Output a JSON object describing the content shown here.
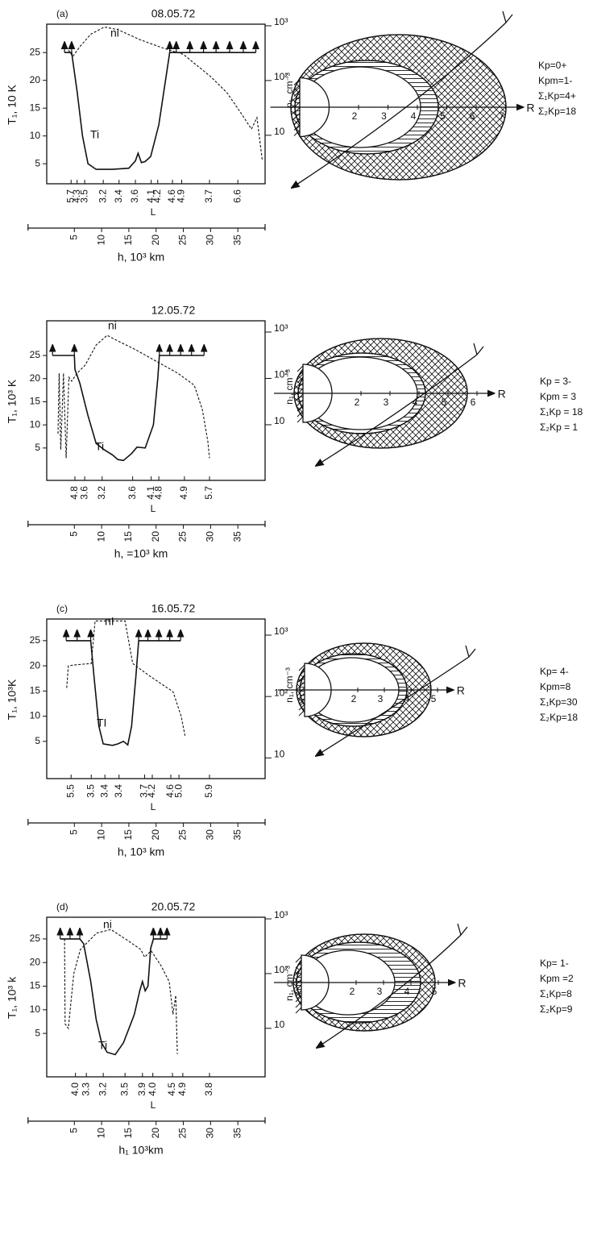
{
  "chart_data": [
    {
      "type": "line",
      "panel_label": "(a)",
      "title": "08.05.72",
      "ylabel": "T₁, 10 K",
      "y2label": "n₁, cm⁻³",
      "xlabel": "h, 10³ km",
      "x2label": "L",
      "xlim": [
        -3.5,
        40
      ],
      "xticks": [
        5,
        10,
        15,
        20,
        25,
        30,
        35
      ],
      "ylim": [
        1.4,
        30.1
      ],
      "yticks": [
        5,
        10,
        15,
        20,
        25
      ],
      "y2lim": [
        1.3,
        1070
      ],
      "y2ticks": [
        10,
        {
          "value": 100,
          "label": "10²"
        },
        {
          "value": 1000,
          "label": "10³"
        }
      ],
      "y2log": true,
      "x2ticks": [
        {
          "value": 4.4,
          "label": "5.7"
        },
        {
          "value": 5.5,
          "label": "4.3"
        },
        {
          "value": 6.9,
          "label": "3.5"
        },
        {
          "value": 10.3,
          "label": "3.2"
        },
        {
          "value": 13.2,
          "label": "3.4"
        },
        {
          "value": 16.2,
          "label": "3.6"
        },
        {
          "value": 19.1,
          "label": "4.1"
        },
        {
          "value": 20.3,
          "label": "4.2"
        },
        {
          "value": 23.0,
          "label": "4.6"
        },
        {
          "value": 24.7,
          "label": "4.9"
        },
        {
          "value": 29.8,
          "label": "3.7"
        },
        {
          "value": 35.0,
          "label": "6.6"
        }
      ],
      "series": [
        {
          "name": "Ti",
          "color": "#111111",
          "line_style": "solid",
          "x": [
            3.2,
            4.5,
            5.5,
            6.5,
            7.5,
            9,
            12,
            15,
            16.2,
            16.7,
            17.3,
            18,
            19,
            20.5,
            22.5,
            23.7,
            26.2,
            28.7,
            31,
            33.5,
            36,
            38.3
          ],
          "values": [
            25,
            25,
            18,
            10,
            5,
            4,
            4,
            4.2,
            5.5,
            6.9,
            5.2,
            5.4,
            6.3,
            12,
            25,
            25,
            25,
            25,
            25,
            25,
            25,
            25
          ]
        },
        {
          "name": "ni",
          "color": "#111111",
          "line_style": "dashed",
          "axis": "y2",
          "x": [
            3.5,
            4.7,
            6,
            8,
            10.5,
            13,
            17,
            21,
            25,
            30,
            33,
            35.5,
            37.5,
            38.5,
            39.5
          ],
          "values": [
            415,
            275,
            415,
            700,
            950,
            850,
            560,
            400,
            300,
            118,
            60,
            26,
            13,
            21,
            3.4
          ]
        }
      ],
      "diagram": {
        "r_ticks": [
          2,
          3,
          4,
          5,
          6,
          7
        ],
        "r_label": "R"
      },
      "kp_indices": [
        "Kp=0+",
        "Kpm=1-",
        "Σ₁Kp=4+",
        "Σ₂Kp=18"
      ]
    },
    {
      "type": "line",
      "title": "12.05.72",
      "ylabel": "T₁, 10³ K",
      "y2label": "n₁, cm⁻³",
      "xlabel": "h, =10³ km",
      "x2label": "L",
      "xlim": [
        -3.5,
        40
      ],
      "xticks": [
        5,
        10,
        15,
        20,
        25,
        30,
        35
      ],
      "ylim": [
        -2,
        32.5
      ],
      "yticks": [
        5,
        10,
        15,
        20,
        25
      ],
      "y2lim": [
        0.63,
        1750
      ],
      "y2ticks": [
        10,
        {
          "value": 100,
          "label": "10²"
        },
        {
          "value": 1000,
          "label": "10³"
        }
      ],
      "y2log": true,
      "x2ticks": [
        {
          "value": 5.1,
          "label": "4.8"
        },
        {
          "value": 6.9,
          "label": "3.6"
        },
        {
          "value": 10.1,
          "label": "3.2"
        },
        {
          "value": 15.7,
          "label": "3.6"
        },
        {
          "value": 19.1,
          "label": "4.1"
        },
        {
          "value": 20.5,
          "label": "4.8"
        },
        {
          "value": 25.2,
          "label": "4.9"
        },
        {
          "value": 29.8,
          "label": "5.7"
        }
      ],
      "series": [
        {
          "name": "Ti",
          "color": "#111111",
          "line_style": "solid",
          "x": [
            1,
            5,
            5.1,
            6,
            7.5,
            9,
            10.5,
            12,
            13,
            14,
            15.5,
            16.5,
            18,
            19.5,
            20.3,
            20.6,
            22.5,
            24.5,
            26.5,
            28.8
          ],
          "values": [
            25,
            25,
            22,
            19,
            12,
            6,
            4.6,
            3.5,
            2.5,
            2.3,
            3.8,
            5.2,
            5,
            10,
            20,
            25,
            25,
            25,
            25,
            25
          ]
        },
        {
          "name": "ni",
          "color": "#111111",
          "line_style": "dashed",
          "axis": "y2",
          "x": [
            2,
            2.2,
            2.5,
            3,
            3.5,
            4,
            4.5,
            5.5,
            7,
            9,
            11,
            13,
            16,
            20,
            24,
            27,
            28.5,
            29.5,
            29.8
          ],
          "values": [
            6.4,
            129,
            2.9,
            129,
            1.9,
            106,
            87,
            129,
            194,
            525,
            850,
            640,
            430,
            235,
            129,
            71,
            21,
            4.3,
            1.9
          ]
        }
      ],
      "diagram": {
        "r_ticks": [
          2,
          3,
          4,
          5,
          6
        ],
        "r_label": "R"
      },
      "kp_indices": [
        "Kp = 3-",
        "Kpm = 3",
        "Σ₁Kp = 18",
        "Σ₂Kp = 1"
      ]
    },
    {
      "type": "line",
      "panel_label": "(c)",
      "title": "16.05.72",
      "ylabel": "T₁,  10³K",
      "y2label": "n₁,  cm⁻³",
      "xlabel": "h, 10³ km",
      "x2label": "L",
      "xlim": [
        -3.5,
        40
      ],
      "xticks": [
        5,
        10,
        15,
        20,
        25,
        30,
        35
      ],
      "ylim": [
        -2.4,
        29.3
      ],
      "yticks": [
        5,
        10,
        15,
        20,
        25
      ],
      "y2lim": [
        4.6,
        1830
      ],
      "y2ticks": [
        10,
        {
          "value": 100,
          "label": "10²"
        },
        {
          "value": 1000,
          "label": "10³"
        }
      ],
      "y2log": true,
      "x2ticks": [
        {
          "value": 4.4,
          "label": "5.5"
        },
        {
          "value": 8.1,
          "label": "3.5"
        },
        {
          "value": 10.6,
          "label": "3.4"
        },
        {
          "value": 13.2,
          "label": "3.4"
        },
        {
          "value": 17.9,
          "label": "3.7"
        },
        {
          "value": 19.3,
          "label": "4.2"
        },
        {
          "value": 22.7,
          "label": "4.6"
        },
        {
          "value": 24.2,
          "label": "5.0"
        },
        {
          "value": 29.8,
          "label": "5.9"
        }
      ],
      "series": [
        {
          "name": "TI",
          "color": "#111111",
          "line_style": "solid",
          "x": [
            3.5,
            5.5,
            8,
            8.6,
            9.5,
            10.3,
            12,
            13,
            14,
            14.8,
            15.5,
            16.3,
            16.8,
            18.5,
            20.5,
            22.5,
            24.5
          ],
          "values": [
            25,
            25,
            25,
            18,
            8,
            4.5,
            4.2,
            4.5,
            5,
            4.3,
            8,
            18,
            25,
            25,
            25,
            25,
            25
          ]
        },
        {
          "name": "nI",
          "color": "#111111",
          "line_style": "dashed",
          "axis": "y2",
          "x": [
            3.6,
            3.9,
            5.4,
            8.1,
            8.8,
            14.3,
            15.7,
            18.7,
            20.9,
            23.1,
            24.6,
            25.3
          ],
          "values": [
            138,
            316,
            330,
            345,
            1700,
            1700,
            345,
            220,
            162,
            120,
            48,
            23
          ]
        }
      ],
      "diagram": {
        "r_ticks": [
          2,
          3,
          4,
          5
        ],
        "r_label": "R"
      },
      "kp_indices": [
        "Kp= 4-",
        "Kpm=8",
        "Σ₁Kp=30",
        "Σ₂Kp=18"
      ]
    },
    {
      "type": "line",
      "panel_label": "(d)",
      "title": "20.05.72",
      "ylabel": "T₁,  10³ k",
      "y2label": "n₁,  cm⁻³",
      "xlabel": "h₁  10³km",
      "x2label": "L",
      "xlim": [
        -3.5,
        40
      ],
      "xticks": [
        5,
        10,
        15,
        20,
        25,
        30,
        35
      ],
      "ylim": [
        -4.2,
        29.6
      ],
      "yticks": [
        5,
        10,
        15,
        20,
        25
      ],
      "y2lim": [
        1.3,
        1070
      ],
      "y2ticks": [
        10,
        {
          "value": 100,
          "label": "10²"
        },
        {
          "value": 1000,
          "label": "10³"
        }
      ],
      "y2log": true,
      "x2ticks": [
        {
          "value": 5.2,
          "label": "4.0"
        },
        {
          "value": 7.2,
          "label": "3.3"
        },
        {
          "value": 10.3,
          "label": "3.2"
        },
        {
          "value": 14.3,
          "label": "3.5"
        },
        {
          "value": 17.5,
          "label": "3.9"
        },
        {
          "value": 19.4,
          "label": "4.0"
        },
        {
          "value": 23.0,
          "label": "4.5"
        },
        {
          "value": 24.9,
          "label": "4.9"
        },
        {
          "value": 29.8,
          "label": "3.8"
        }
      ],
      "series": [
        {
          "name": "Ti",
          "color": "#111111",
          "line_style": "solid",
          "x": [
            2.4,
            4.2,
            6,
            6.7,
            8,
            9,
            10,
            11,
            12.5,
            14,
            16,
            17,
            17.5,
            18,
            18.5,
            19,
            19.5,
            20.8,
            22
          ],
          "values": [
            25,
            25,
            25,
            24,
            16,
            8,
            3,
            1,
            0.5,
            3,
            9,
            14,
            16,
            14,
            15,
            23,
            25,
            25,
            25
          ]
        },
        {
          "name": "ni",
          "color": "#111111",
          "line_style": "dashed",
          "axis": "y2",
          "x": [
            3.2,
            3.3,
            3.9,
            4.9,
            6.1,
            9.1,
            11.7,
            15,
            17.2,
            17.9,
            19.1,
            20.9,
            22.4,
            23.1,
            23.6,
            23.9
          ],
          "values": [
            430,
            12,
            10,
            100,
            275,
            550,
            640,
            390,
            275,
            200,
            260,
            140,
            71,
            18,
            40,
            3.4
          ]
        }
      ],
      "diagram": {
        "r_ticks": [
          2,
          3,
          4,
          5
        ],
        "r_label": "R"
      },
      "kp_indices": [
        "Kp= 1-",
        "Kpm =2",
        "Σ₁Kp=8",
        "Σ₂Kp=9"
      ]
    }
  ]
}
